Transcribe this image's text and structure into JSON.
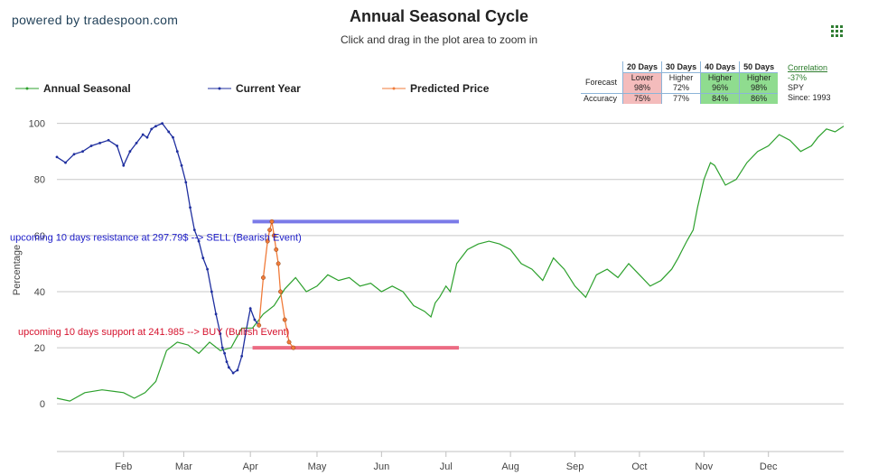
{
  "header": {
    "powered_by": "powered by tradespoon.com",
    "title": "Annual Seasonal Cycle",
    "subtitle": "Click and drag in the plot area to zoom in",
    "menu_icon": "grid-menu-icon"
  },
  "legend": [
    {
      "name": "Annual Seasonal",
      "color": "#2ca02c"
    },
    {
      "name": "Current Year",
      "color": "#1f2f9f"
    },
    {
      "name": "Predicted Price",
      "color": "#f07b3a"
    }
  ],
  "stats_table": {
    "headers": [
      "20 Days",
      "30 Days",
      "40 Days",
      "50 Days"
    ],
    "forecast_label": "Forecast",
    "accuracy_label": "Accuracy",
    "forecast": [
      {
        "label": "Lower",
        "pct": "98%",
        "color": "red"
      },
      {
        "label": "Higher",
        "pct": "72%",
        "color": "none"
      },
      {
        "label": "Higher",
        "pct": "96%",
        "color": "green"
      },
      {
        "label": "Higher",
        "pct": "98%",
        "color": "green"
      }
    ],
    "accuracy": [
      {
        "pct": "75%",
        "color": "red"
      },
      {
        "pct": "77%",
        "color": "none"
      },
      {
        "pct": "84%",
        "color": "green"
      },
      {
        "pct": "86%",
        "color": "green"
      }
    ]
  },
  "correlation": {
    "link": "Correlation",
    "value": "-37%",
    "symbol": "SPY",
    "since": "Since: 1993"
  },
  "chart_data": {
    "type": "line",
    "ylabel": "Percentage",
    "ylim": [
      -17,
      106
    ],
    "y_ticks": [
      0,
      20,
      40,
      60,
      80,
      100
    ],
    "x_ticks": [
      "Feb",
      "Mar",
      "Apr",
      "May",
      "Jun",
      "Jul",
      "Aug",
      "Sep",
      "Oct",
      "Nov",
      "Dec"
    ],
    "x_tick_days": [
      45,
      73,
      104,
      135,
      165,
      195,
      225,
      255,
      285,
      315,
      345
    ],
    "x_range": [
      14,
      380
    ],
    "grid": true,
    "annotations": {
      "resistance_text": "upcoming 10 days resistance at 297.79$ --> SELL (Bearish Event)",
      "support_text": "upcoming 10 days support at 241.985 --> BUY (Bullish Event)",
      "resistance_level": 65,
      "support_level": 20,
      "resistance_color": "#7b7be8",
      "support_color": "#ec6b83",
      "level_x_range": [
        105,
        201
      ]
    },
    "series": [
      {
        "name": "Annual Seasonal",
        "color": "#2ca02c",
        "x": [
          14,
          20,
          27,
          35,
          45,
          50,
          55,
          60,
          65,
          70,
          75,
          80,
          85,
          90,
          95,
          100,
          105,
          110,
          115,
          120,
          125,
          130,
          135,
          140,
          145,
          150,
          155,
          160,
          165,
          170,
          175,
          180,
          185,
          188,
          190,
          192,
          195,
          197,
          200,
          205,
          210,
          215,
          220,
          225,
          230,
          235,
          240,
          245,
          250,
          255,
          260,
          265,
          270,
          275,
          280,
          285,
          290,
          295,
          300,
          303,
          305,
          307,
          310,
          312,
          315,
          318,
          320,
          325,
          330,
          335,
          340,
          345,
          350,
          355,
          360,
          365,
          368,
          372,
          376,
          380
        ],
        "values": [
          2,
          1,
          4,
          5,
          4,
          2,
          4,
          8,
          19,
          22,
          21,
          18,
          22,
          19,
          20,
          27,
          27,
          32,
          35,
          41,
          45,
          40,
          42,
          46,
          44,
          45,
          42,
          43,
          40,
          42,
          40,
          35,
          33,
          31,
          36,
          38,
          42,
          40,
          50,
          55,
          57,
          58,
          57,
          55,
          50,
          48,
          44,
          52,
          48,
          42,
          38,
          46,
          48,
          45,
          50,
          46,
          42,
          44,
          48,
          52,
          55,
          58,
          62,
          70,
          80,
          86,
          85,
          78,
          80,
          86,
          90,
          92,
          96,
          94,
          90,
          92,
          95,
          98,
          97,
          99
        ]
      },
      {
        "name": "Current Year",
        "color": "#1f2f9f",
        "x": [
          14,
          18,
          22,
          26,
          30,
          34,
          38,
          42,
          45,
          48,
          51,
          54,
          56,
          58,
          60,
          63,
          66,
          68,
          70,
          72,
          74,
          76,
          78,
          80,
          82,
          84,
          86,
          88,
          90,
          91,
          92,
          93,
          94,
          96,
          98,
          100,
          102,
          104,
          106,
          108
        ],
        "values": [
          88,
          86,
          89,
          90,
          92,
          93,
          94,
          92,
          85,
          90,
          93,
          96,
          95,
          98,
          99,
          100,
          97,
          95,
          90,
          85,
          79,
          70,
          62,
          58,
          52,
          48,
          40,
          32,
          25,
          20,
          18,
          15,
          13,
          11,
          12,
          17,
          26,
          34,
          30,
          28
        ]
      },
      {
        "name": "Predicted Price",
        "color": "#f07b3a",
        "x": [
          108,
          110,
          112,
          113,
          114,
          115,
          116,
          117,
          118,
          120,
          122,
          124
        ],
        "values": [
          28,
          45,
          58,
          62,
          65,
          60,
          55,
          50,
          40,
          30,
          22,
          20
        ]
      }
    ]
  }
}
